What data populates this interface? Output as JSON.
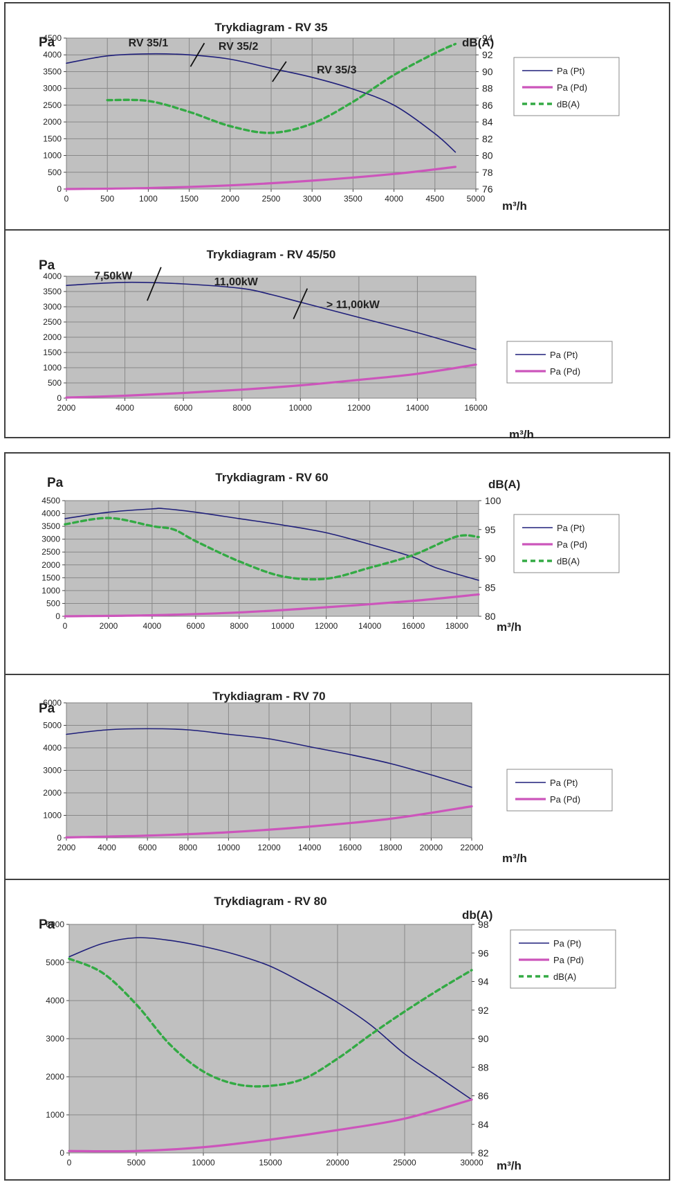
{
  "chart_data": [
    {
      "type": "line",
      "title": "Trykdiagram - RV 35",
      "xlabel": "m³/h",
      "ylabel": "Pa",
      "y2label": "dB(A)",
      "xlim": [
        0,
        5000
      ],
      "xstep": 500,
      "ylim": [
        0,
        4500
      ],
      "ystep": 500,
      "y2lim": [
        76,
        94
      ],
      "y2step": 2,
      "grid": true,
      "legend": "right",
      "series": [
        {
          "name": "Pa (Pt)",
          "color": "#1f1f7a",
          "style": "solid",
          "axis": "left",
          "x": [
            0,
            500,
            1000,
            1500,
            2000,
            2500,
            3000,
            3500,
            4000,
            4500,
            4750
          ],
          "y": [
            3750,
            3970,
            4030,
            4000,
            3870,
            3600,
            3330,
            2980,
            2500,
            1650,
            1100
          ]
        },
        {
          "name": "Pa (Pd)",
          "color": "#cc55bb",
          "style": "thick",
          "axis": "left",
          "x": [
            0,
            1000,
            2000,
            3000,
            4000,
            4750
          ],
          "y": [
            0,
            30,
            110,
            250,
            450,
            660
          ]
        },
        {
          "name": "dB(A)",
          "color": "#33aa44",
          "style": "dashed",
          "axis": "right",
          "x": [
            500,
            1000,
            1500,
            2000,
            2500,
            3000,
            3500,
            4000,
            4500,
            4750
          ],
          "y": [
            86.6,
            86.5,
            85.2,
            83.5,
            82.7,
            83.8,
            86.4,
            89.6,
            92.2,
            93.3
          ]
        }
      ],
      "annotations": [
        {
          "text": "RV 35/1",
          "x": 1000,
          "y": 4250
        },
        {
          "text": "RV 35/2",
          "x": 2100,
          "y": 4150
        },
        {
          "text": "RV 35/3",
          "x": 3300,
          "y": 3450
        }
      ],
      "dividers": [
        {
          "x": 1600,
          "y1": 3650,
          "y2": 4350
        },
        {
          "x": 2600,
          "y1": 3200,
          "y2": 3800
        }
      ]
    },
    {
      "type": "line",
      "title": "Trykdiagram - RV 45/50",
      "xlabel": "m³/h",
      "ylabel": "Pa",
      "xlim": [
        2000,
        16000
      ],
      "xstep": 2000,
      "ylim": [
        0,
        4000
      ],
      "ystep": 500,
      "grid": true,
      "legend": "right",
      "series": [
        {
          "name": "Pa (Pt)",
          "color": "#1f1f7a",
          "style": "solid",
          "axis": "left",
          "x": [
            2000,
            4000,
            6000,
            8000,
            9000,
            10000,
            12000,
            14000,
            16000
          ],
          "y": [
            3700,
            3800,
            3750,
            3600,
            3400,
            3150,
            2650,
            2150,
            1600
          ]
        },
        {
          "name": "Pa (Pd)",
          "color": "#cc55bb",
          "style": "thick",
          "axis": "left",
          "x": [
            2000,
            4000,
            6000,
            8000,
            10000,
            12000,
            14000,
            16000
          ],
          "y": [
            20,
            80,
            170,
            280,
            420,
            600,
            800,
            1100
          ]
        }
      ],
      "annotations": [
        {
          "text": "7,50kW",
          "x": 3600,
          "y": 3900
        },
        {
          "text": "11,00kW",
          "x": 7800,
          "y": 3700
        },
        {
          "text": "> 11,00kW",
          "x": 11800,
          "y": 2950
        }
      ],
      "dividers": [
        {
          "x": 5000,
          "y1": 3200,
          "y2": 4300
        },
        {
          "x": 10000,
          "y1": 2600,
          "y2": 3600
        }
      ]
    },
    {
      "type": "line",
      "title": "Trykdiagram - RV 60",
      "xlabel": "m³/h",
      "ylabel": "Pa",
      "y2label": "dB(A)",
      "xlim": [
        0,
        19000
      ],
      "xstep": 2000,
      "ylim": [
        0,
        4500
      ],
      "ystep": 500,
      "y2lim": [
        80,
        100
      ],
      "y2step": 5,
      "grid": true,
      "legend": "right",
      "series": [
        {
          "name": "Pa (Pt)",
          "color": "#1f1f7a",
          "style": "solid",
          "axis": "left",
          "x": [
            0,
            2000,
            4000,
            4500,
            6000,
            8000,
            10000,
            12000,
            14000,
            16000,
            17000,
            19000
          ],
          "y": [
            3800,
            4050,
            4180,
            4190,
            4050,
            3800,
            3550,
            3250,
            2800,
            2300,
            1900,
            1400
          ]
        },
        {
          "name": "Pa (Pd)",
          "color": "#cc55bb",
          "style": "thick",
          "axis": "left",
          "x": [
            0,
            4000,
            8000,
            12000,
            16000,
            19000
          ],
          "y": [
            0,
            40,
            150,
            350,
            600,
            850
          ]
        },
        {
          "name": "dB(A)",
          "color": "#33aa44",
          "style": "dashed",
          "axis": "right",
          "x": [
            0,
            2000,
            4000,
            5000,
            6000,
            8000,
            10000,
            12000,
            14000,
            16000,
            18000,
            19000
          ],
          "y": [
            95.9,
            97.0,
            95.6,
            95.0,
            93.0,
            89.5,
            86.9,
            86.5,
            88.4,
            90.6,
            93.8,
            93.7
          ]
        }
      ]
    },
    {
      "type": "line",
      "title": "Trykdiagram - RV 70",
      "xlabel": "m³/h",
      "ylabel": "Pa",
      "xlim": [
        2000,
        22000
      ],
      "xstep": 2000,
      "ylim": [
        0,
        6000
      ],
      "ystep": 1000,
      "grid": true,
      "legend": "right",
      "series": [
        {
          "name": "Pa (Pt)",
          "color": "#1f1f7a",
          "style": "solid",
          "axis": "left",
          "x": [
            2000,
            4000,
            6000,
            8000,
            10000,
            12000,
            14000,
            16000,
            18000,
            20000,
            22000
          ],
          "y": [
            4600,
            4800,
            4850,
            4800,
            4600,
            4400,
            4050,
            3700,
            3300,
            2800,
            2250
          ]
        },
        {
          "name": "Pa (Pd)",
          "color": "#cc55bb",
          "style": "thick",
          "axis": "left",
          "x": [
            2000,
            6000,
            10000,
            14000,
            18000,
            22000
          ],
          "y": [
            20,
            100,
            250,
            500,
            850,
            1400
          ]
        }
      ]
    },
    {
      "type": "line",
      "title": "Trykdiagram - RV 80",
      "xlabel": "m³/h",
      "ylabel": "Pa",
      "y2label": "db(A)",
      "xlim": [
        0,
        30000
      ],
      "xstep": 5000,
      "ylim": [
        0,
        6000
      ],
      "ystep": 1000,
      "y2lim": [
        82,
        98
      ],
      "y2step": 2,
      "grid": true,
      "legend": "right",
      "series": [
        {
          "name": "Pa (Pt)",
          "color": "#1f1f7a",
          "style": "solid",
          "axis": "left",
          "x": [
            0,
            2500,
            5000,
            7500,
            10000,
            12500,
            15000,
            17500,
            20000,
            22500,
            25000,
            27500,
            30000
          ],
          "y": [
            5150,
            5500,
            5650,
            5580,
            5420,
            5200,
            4900,
            4450,
            3950,
            3350,
            2600,
            2000,
            1400
          ]
        },
        {
          "name": "Pa (Pd)",
          "color": "#cc55bb",
          "style": "thick",
          "axis": "left",
          "x": [
            0,
            5000,
            10000,
            15000,
            20000,
            25000,
            30000
          ],
          "y": [
            50,
            50,
            150,
            350,
            600,
            900,
            1400
          ]
        },
        {
          "name": "dB(A)",
          "color": "#33aa44",
          "style": "dashed",
          "axis": "right",
          "x": [
            0,
            2500,
            5000,
            7500,
            10000,
            12500,
            15000,
            17500,
            20000,
            22500,
            25000,
            27500,
            30000
          ],
          "y": [
            95.6,
            94.6,
            92.4,
            89.6,
            87.7,
            86.8,
            86.7,
            87.2,
            88.6,
            90.3,
            91.9,
            93.4,
            94.8
          ]
        }
      ]
    }
  ]
}
